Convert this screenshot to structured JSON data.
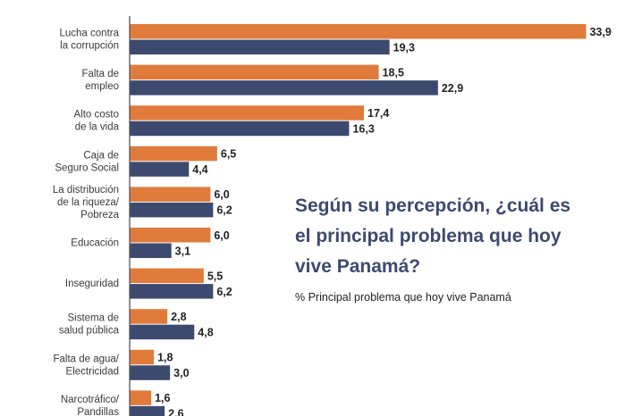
{
  "chart_data": {
    "type": "bar",
    "orientation": "horizontal",
    "title": "Según su percepción, ¿cuál es el principal problema que hoy vive Panamá?",
    "subtitle": "% Principal problema que hoy vive Panamá",
    "categories": [
      [
        "Lucha contra",
        "la corrupción"
      ],
      [
        "Falta de",
        "empleo"
      ],
      [
        "Alto costo",
        "de la vida"
      ],
      [
        "Caja de",
        "Seguro Social"
      ],
      [
        "La distribución",
        "de la riqueza/",
        "Pobreza"
      ],
      [
        "Educación"
      ],
      [
        "Inseguridad"
      ],
      [
        "Sistema de",
        "salud pública"
      ],
      [
        "Falta de agua/",
        "Electricidad"
      ],
      [
        "Narcotráfico/",
        "Pandillas"
      ]
    ],
    "series": [
      {
        "name": "orange",
        "color": "#e07b3c",
        "values": [
          33.9,
          18.5,
          17.4,
          6.5,
          6.0,
          6.0,
          5.5,
          2.8,
          1.8,
          1.6
        ],
        "labels": [
          "33,9",
          "18,5",
          "17,4",
          "6,5",
          "6,0",
          "6,0",
          "5,5",
          "2,8",
          "1,8",
          "1,6"
        ]
      },
      {
        "name": "blue",
        "color": "#3d4a70",
        "values": [
          19.3,
          22.9,
          16.3,
          4.4,
          6.2,
          3.1,
          6.2,
          4.8,
          3.0,
          2.6
        ],
        "labels": [
          "19,3",
          "22,9",
          "16,3",
          "4,4",
          "6,2",
          "3,1",
          "6,2",
          "4,8",
          "3,0",
          "2,6"
        ]
      }
    ],
    "xlim": [
      0,
      34
    ],
    "grid": false,
    "legend": "none"
  },
  "title_lines": [
    "Según su percepción, ¿cuál es",
    "el principal problema que hoy",
    "vive Panamá?"
  ],
  "subtitle": "% Principal problema que hoy vive Panamá"
}
